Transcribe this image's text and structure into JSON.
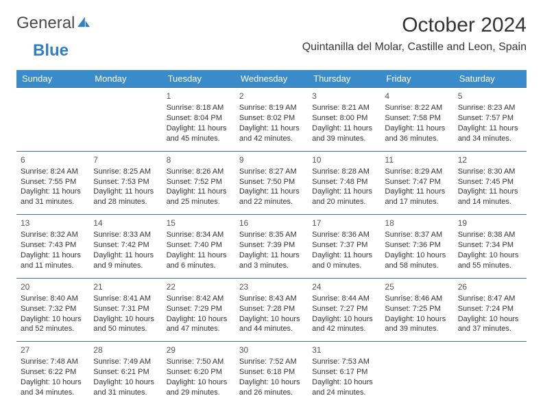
{
  "brand": {
    "word1": "General",
    "word2": "Blue"
  },
  "title": "October 2024",
  "location": "Quintanilla del Molar, Castille and Leon, Spain",
  "colors": {
    "header_bg": "#3a8bc9",
    "header_text": "#ffffff",
    "row_border": "#3a6fa0",
    "brand_blue": "#2f7fc2",
    "text": "#333333",
    "page_bg": "#ffffff"
  },
  "typography": {
    "title_fontsize": 30,
    "location_fontsize": 16,
    "dayheader_fontsize": 13,
    "cell_fontsize": 11,
    "logo_fontsize": 24
  },
  "days": [
    "Sunday",
    "Monday",
    "Tuesday",
    "Wednesday",
    "Thursday",
    "Friday",
    "Saturday"
  ],
  "weeks": [
    [
      null,
      null,
      {
        "n": "1",
        "sr": "Sunrise: 8:18 AM",
        "ss": "Sunset: 8:04 PM",
        "dl": "Daylight: 11 hours and 45 minutes."
      },
      {
        "n": "2",
        "sr": "Sunrise: 8:19 AM",
        "ss": "Sunset: 8:02 PM",
        "dl": "Daylight: 11 hours and 42 minutes."
      },
      {
        "n": "3",
        "sr": "Sunrise: 8:21 AM",
        "ss": "Sunset: 8:00 PM",
        "dl": "Daylight: 11 hours and 39 minutes."
      },
      {
        "n": "4",
        "sr": "Sunrise: 8:22 AM",
        "ss": "Sunset: 7:58 PM",
        "dl": "Daylight: 11 hours and 36 minutes."
      },
      {
        "n": "5",
        "sr": "Sunrise: 8:23 AM",
        "ss": "Sunset: 7:57 PM",
        "dl": "Daylight: 11 hours and 34 minutes."
      }
    ],
    [
      {
        "n": "6",
        "sr": "Sunrise: 8:24 AM",
        "ss": "Sunset: 7:55 PM",
        "dl": "Daylight: 11 hours and 31 minutes."
      },
      {
        "n": "7",
        "sr": "Sunrise: 8:25 AM",
        "ss": "Sunset: 7:53 PM",
        "dl": "Daylight: 11 hours and 28 minutes."
      },
      {
        "n": "8",
        "sr": "Sunrise: 8:26 AM",
        "ss": "Sunset: 7:52 PM",
        "dl": "Daylight: 11 hours and 25 minutes."
      },
      {
        "n": "9",
        "sr": "Sunrise: 8:27 AM",
        "ss": "Sunset: 7:50 PM",
        "dl": "Daylight: 11 hours and 22 minutes."
      },
      {
        "n": "10",
        "sr": "Sunrise: 8:28 AM",
        "ss": "Sunset: 7:48 PM",
        "dl": "Daylight: 11 hours and 20 minutes."
      },
      {
        "n": "11",
        "sr": "Sunrise: 8:29 AM",
        "ss": "Sunset: 7:47 PM",
        "dl": "Daylight: 11 hours and 17 minutes."
      },
      {
        "n": "12",
        "sr": "Sunrise: 8:30 AM",
        "ss": "Sunset: 7:45 PM",
        "dl": "Daylight: 11 hours and 14 minutes."
      }
    ],
    [
      {
        "n": "13",
        "sr": "Sunrise: 8:32 AM",
        "ss": "Sunset: 7:43 PM",
        "dl": "Daylight: 11 hours and 11 minutes."
      },
      {
        "n": "14",
        "sr": "Sunrise: 8:33 AM",
        "ss": "Sunset: 7:42 PM",
        "dl": "Daylight: 11 hours and 9 minutes."
      },
      {
        "n": "15",
        "sr": "Sunrise: 8:34 AM",
        "ss": "Sunset: 7:40 PM",
        "dl": "Daylight: 11 hours and 6 minutes."
      },
      {
        "n": "16",
        "sr": "Sunrise: 8:35 AM",
        "ss": "Sunset: 7:39 PM",
        "dl": "Daylight: 11 hours and 3 minutes."
      },
      {
        "n": "17",
        "sr": "Sunrise: 8:36 AM",
        "ss": "Sunset: 7:37 PM",
        "dl": "Daylight: 11 hours and 0 minutes."
      },
      {
        "n": "18",
        "sr": "Sunrise: 8:37 AM",
        "ss": "Sunset: 7:36 PM",
        "dl": "Daylight: 10 hours and 58 minutes."
      },
      {
        "n": "19",
        "sr": "Sunrise: 8:38 AM",
        "ss": "Sunset: 7:34 PM",
        "dl": "Daylight: 10 hours and 55 minutes."
      }
    ],
    [
      {
        "n": "20",
        "sr": "Sunrise: 8:40 AM",
        "ss": "Sunset: 7:32 PM",
        "dl": "Daylight: 10 hours and 52 minutes."
      },
      {
        "n": "21",
        "sr": "Sunrise: 8:41 AM",
        "ss": "Sunset: 7:31 PM",
        "dl": "Daylight: 10 hours and 50 minutes."
      },
      {
        "n": "22",
        "sr": "Sunrise: 8:42 AM",
        "ss": "Sunset: 7:29 PM",
        "dl": "Daylight: 10 hours and 47 minutes."
      },
      {
        "n": "23",
        "sr": "Sunrise: 8:43 AM",
        "ss": "Sunset: 7:28 PM",
        "dl": "Daylight: 10 hours and 44 minutes."
      },
      {
        "n": "24",
        "sr": "Sunrise: 8:44 AM",
        "ss": "Sunset: 7:27 PM",
        "dl": "Daylight: 10 hours and 42 minutes."
      },
      {
        "n": "25",
        "sr": "Sunrise: 8:46 AM",
        "ss": "Sunset: 7:25 PM",
        "dl": "Daylight: 10 hours and 39 minutes."
      },
      {
        "n": "26",
        "sr": "Sunrise: 8:47 AM",
        "ss": "Sunset: 7:24 PM",
        "dl": "Daylight: 10 hours and 37 minutes."
      }
    ],
    [
      {
        "n": "27",
        "sr": "Sunrise: 7:48 AM",
        "ss": "Sunset: 6:22 PM",
        "dl": "Daylight: 10 hours and 34 minutes."
      },
      {
        "n": "28",
        "sr": "Sunrise: 7:49 AM",
        "ss": "Sunset: 6:21 PM",
        "dl": "Daylight: 10 hours and 31 minutes."
      },
      {
        "n": "29",
        "sr": "Sunrise: 7:50 AM",
        "ss": "Sunset: 6:20 PM",
        "dl": "Daylight: 10 hours and 29 minutes."
      },
      {
        "n": "30",
        "sr": "Sunrise: 7:52 AM",
        "ss": "Sunset: 6:18 PM",
        "dl": "Daylight: 10 hours and 26 minutes."
      },
      {
        "n": "31",
        "sr": "Sunrise: 7:53 AM",
        "ss": "Sunset: 6:17 PM",
        "dl": "Daylight: 10 hours and 24 minutes."
      },
      null,
      null
    ]
  ]
}
